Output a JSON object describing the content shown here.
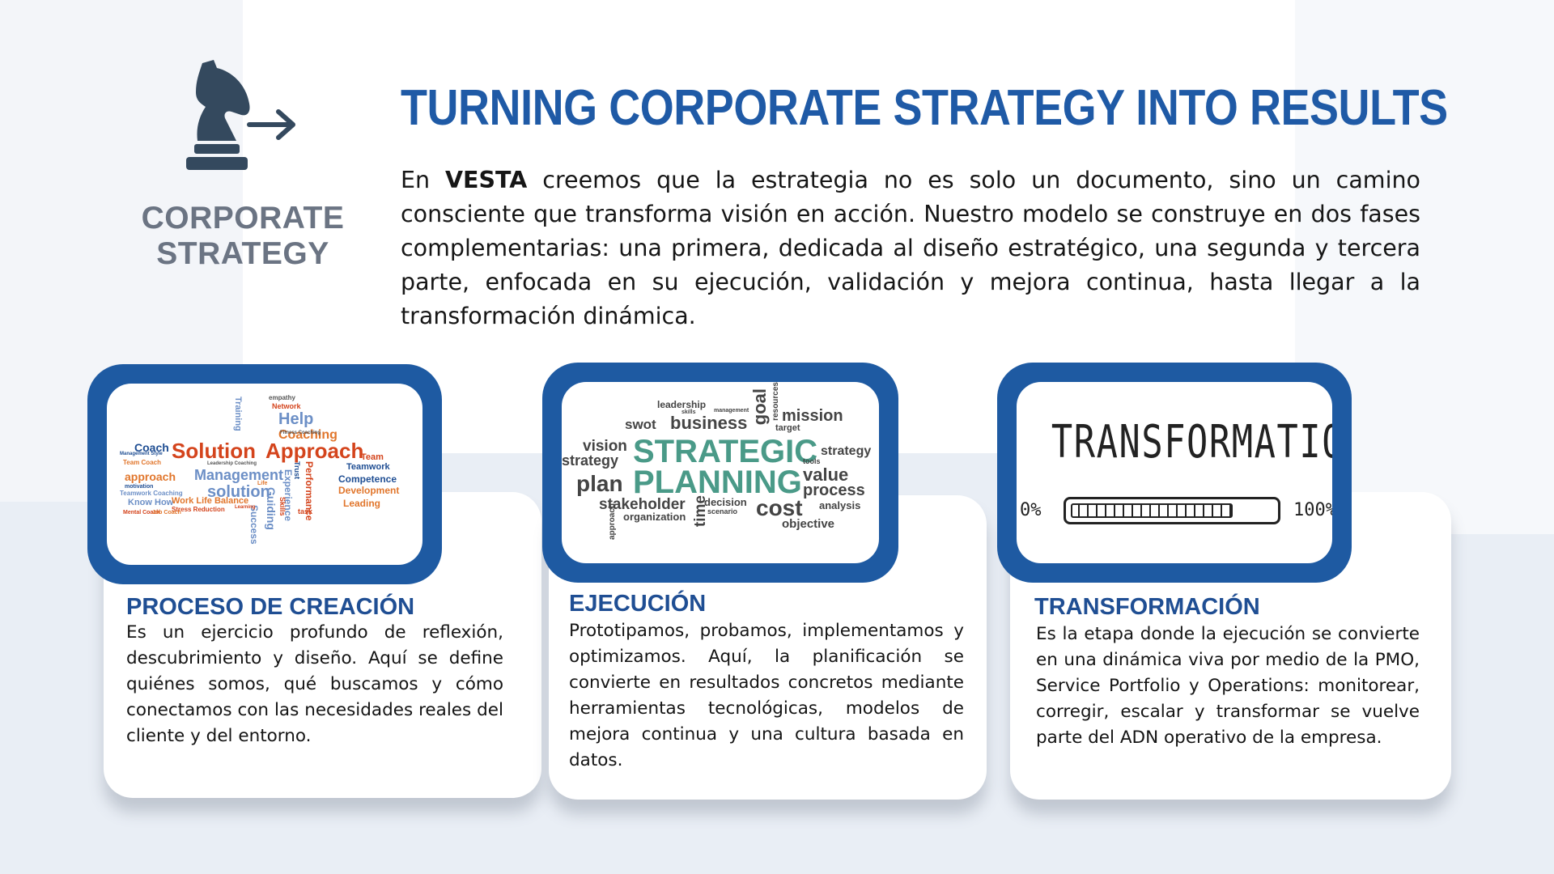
{
  "logo": {
    "icon": "chess-knight-arrow-icon",
    "line1": "CORPORATE",
    "line2": "STRATEGY"
  },
  "header": {
    "title": "TURNING CORPORATE STRATEGY INTO RESULTS",
    "intro_prefix": "En ",
    "intro_brand": "VESTA",
    "intro_rest": " creemos que la estrategia no es solo un documento, sino un camino consciente que transforma visión en acción. Nuestro modelo se construye en dos fases complementarias: una primera, dedicada al diseño estratégico, una segunda y tercera parte, enfocada en su ejecución, validación y mejora continua, hasta llegar a la transformación dinámica."
  },
  "cards": [
    {
      "title": "PROCESO DE CREACIÓN",
      "body": "Es un ejercicio profundo de reflexión, descubrimiento y diseño. Aquí se define quiénes somos, qué buscamos y cómo conectamos con las necesidades reales del cliente y del entorno.",
      "image": {
        "words": [
          "Network",
          "Help",
          "Coaching",
          "Coach",
          "Solution",
          "Approach",
          "Team",
          "Teamwork",
          "Competence",
          "Development",
          "Leading",
          "Management",
          "approach",
          "solution",
          "Performance",
          "Experience",
          "Guiding",
          "Skills",
          "Success",
          "Trust",
          "Know How",
          "Work Life Balance",
          "Stress Reduction",
          "Team Coach",
          "motivation",
          "Teamwork Coaching",
          "Mental Coach",
          "Job Coach",
          "task",
          "Training",
          "Management Style",
          "Leadership Coaching",
          "Fitness Coaching",
          "Learning",
          "Life"
        ]
      }
    },
    {
      "title": "EJECUCIÓN",
      "body": "Prototipamos, probamos, implementamos y optimizamos. Aquí, la planificación se convierte en resultados concretos mediante herramientas tecnológicas, modelos de mejora continua y una cultura basada en datos.",
      "image": {
        "words": [
          "leadership",
          "skills",
          "management",
          "goal",
          "resources",
          "mission",
          "swot",
          "business",
          "target",
          "vision",
          "strategy",
          "STRATEGIC",
          "PLANNING",
          "strategy",
          "tools",
          "value",
          "plan",
          "process",
          "stakeholder",
          "decision",
          "scenario",
          "cost",
          "analysis",
          "organization",
          "time",
          "objective",
          "approach"
        ]
      }
    },
    {
      "title": "TRANSFORMACIÓN",
      "body": "Es la etapa donde la ejecución se convierte en una dinámica viva por medio de la PMO, Service Portfolio y Operations: monitorear, corregir, escalar y transformar se vuelve parte del ADN operativo de la empresa.",
      "image": {
        "word": "TRANSFORMATION",
        "left_label": "0%",
        "right_label": "100%",
        "progress": 0.8
      }
    }
  ],
  "colors": {
    "title_blue": "#1f5aa6",
    "frame_blue": "#1e5aa2",
    "logo_gray": "#6b7483",
    "knight_navy": "#34495e"
  }
}
